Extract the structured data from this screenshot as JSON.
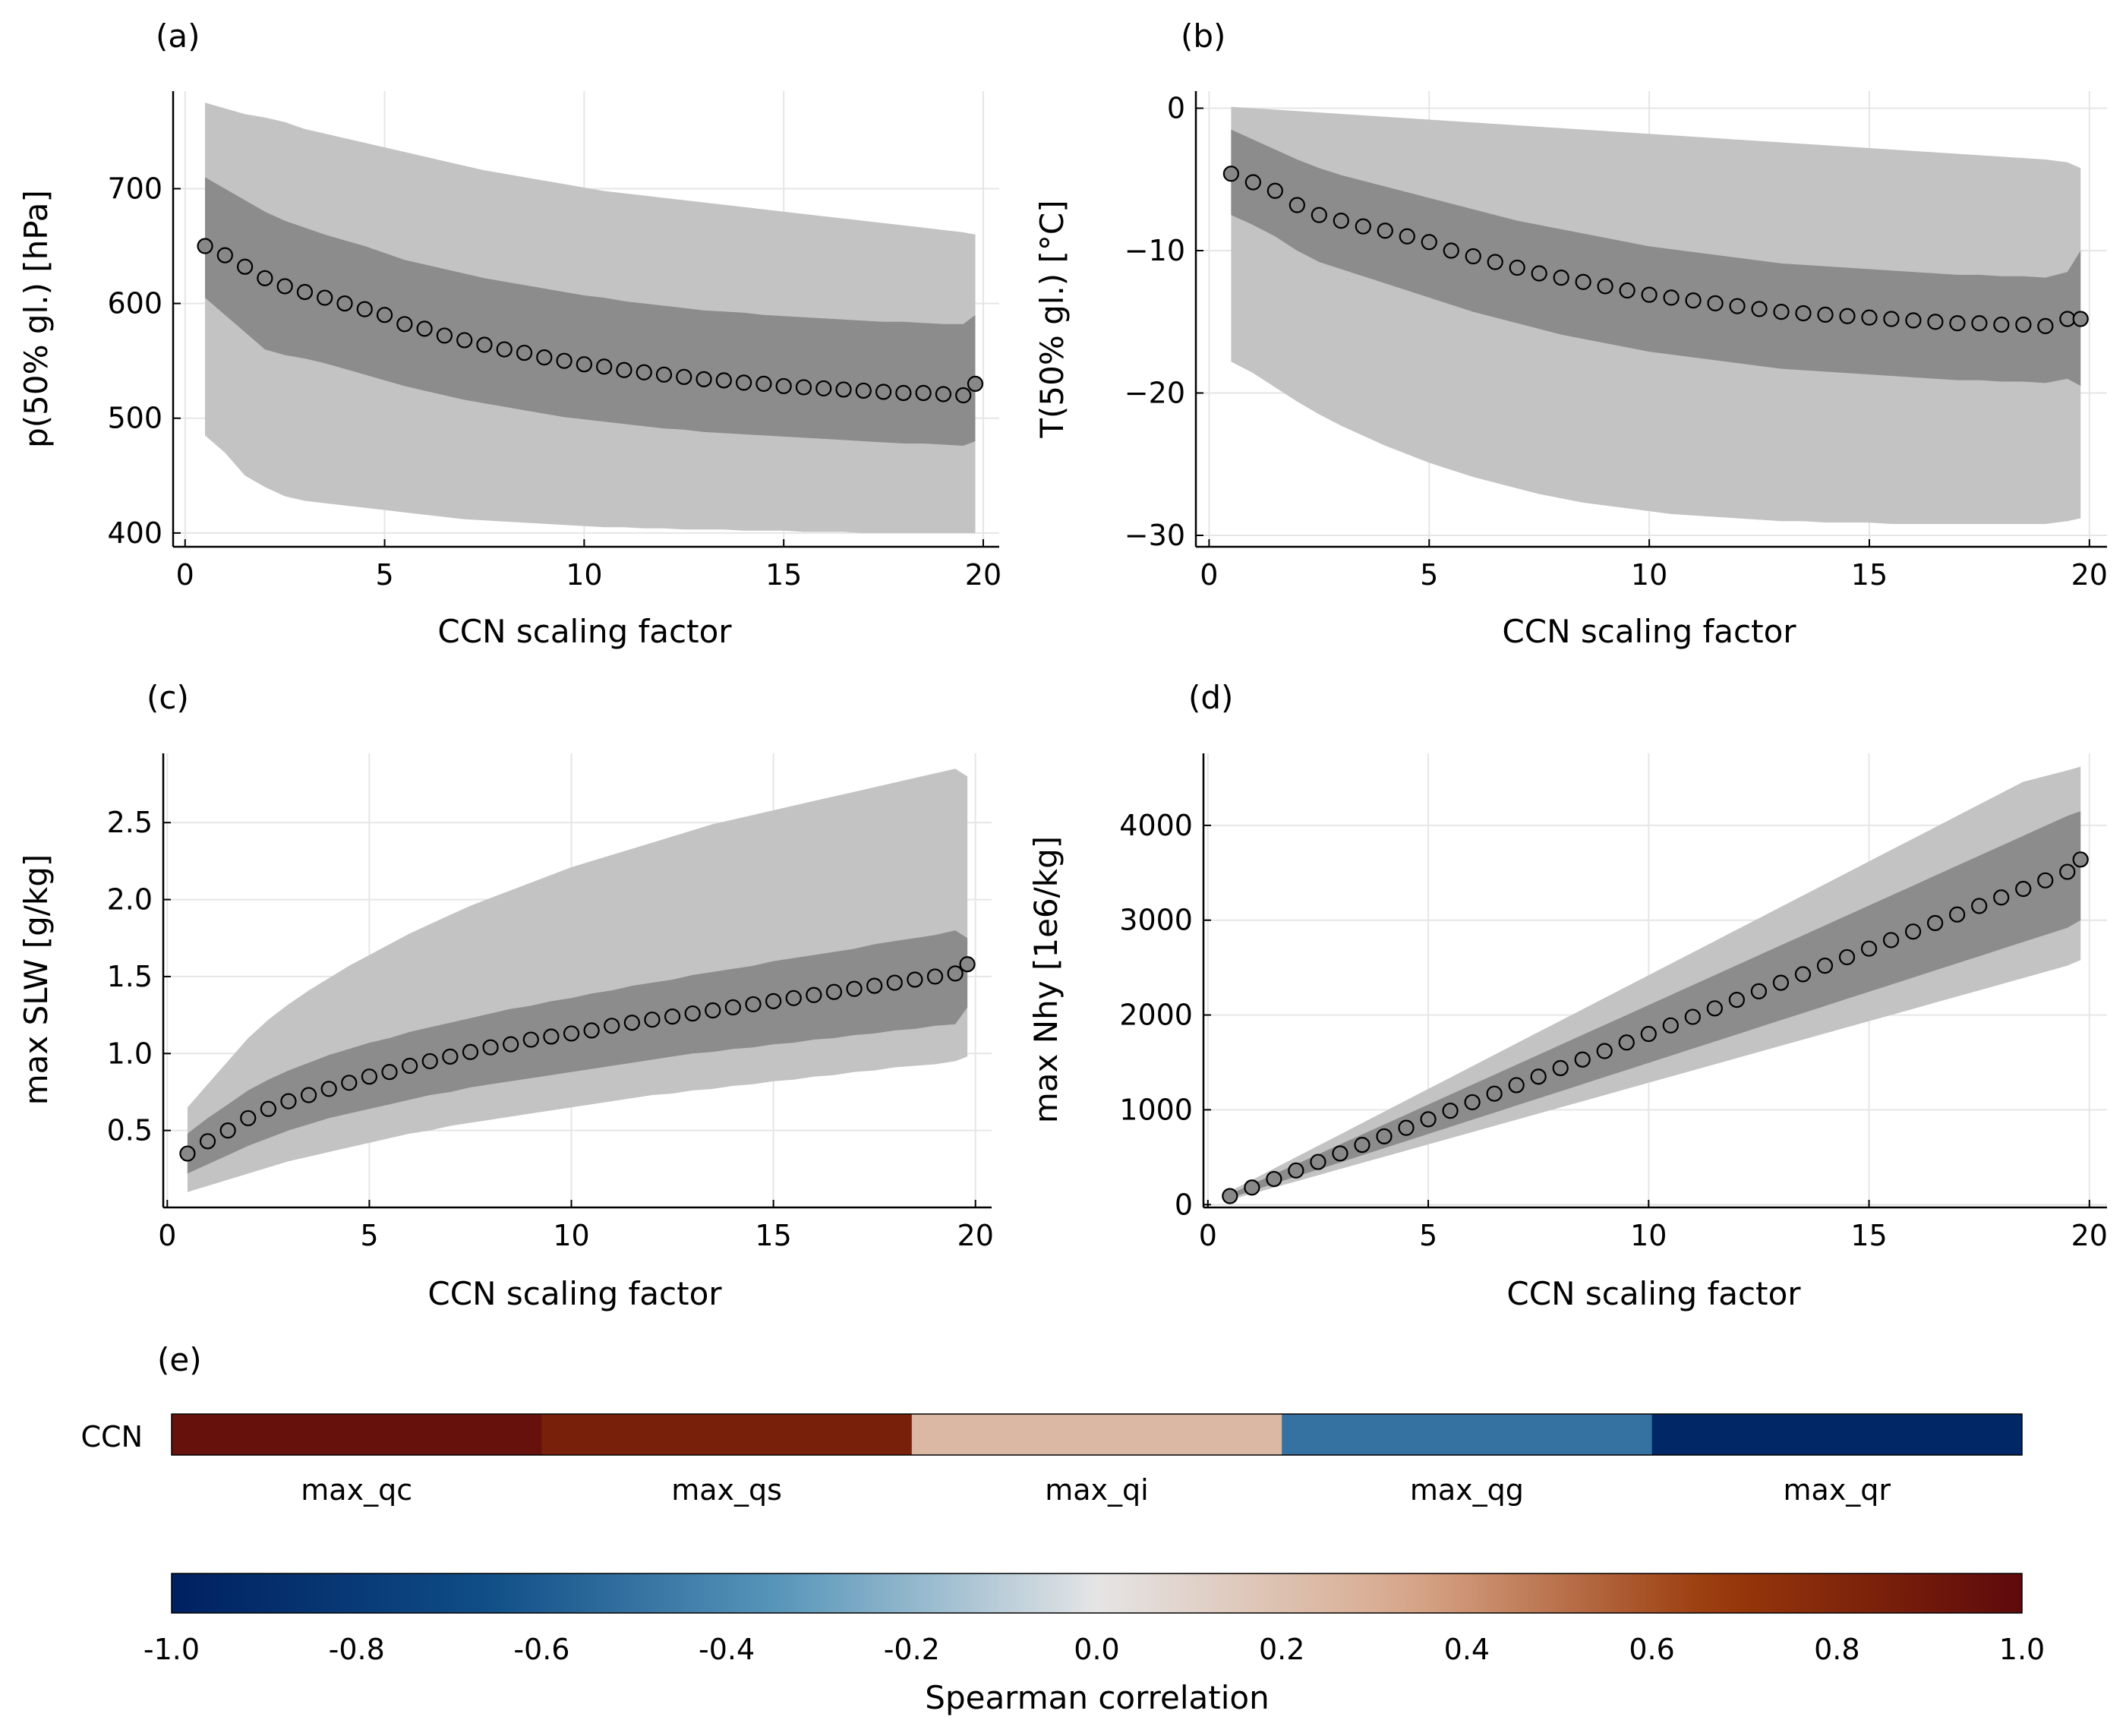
{
  "chart_data": [
    {
      "id": "a",
      "type": "scatter",
      "panel_label": "(a)",
      "xlabel": "CCN scaling factor",
      "ylabel": "p(50% gl.) [hPa]",
      "xlim": [
        -0.3,
        20.4
      ],
      "ylim": [
        388,
        785
      ],
      "xticks": [
        0,
        5,
        10,
        15,
        20
      ],
      "yticks": [
        400,
        500,
        600,
        700
      ],
      "ytick_labels": [
        "400",
        "500",
        "600",
        "700"
      ],
      "grid": true,
      "x": [
        0.5,
        1.0,
        1.5,
        2.0,
        2.5,
        3.0,
        3.5,
        4.0,
        4.5,
        5.0,
        5.5,
        6.0,
        6.5,
        7.0,
        7.5,
        8.0,
        8.5,
        9.0,
        9.5,
        10.0,
        10.5,
        11.0,
        11.5,
        12.0,
        12.5,
        13.0,
        13.5,
        14.0,
        14.5,
        15.0,
        15.5,
        16.0,
        16.5,
        17.0,
        17.5,
        18.0,
        18.5,
        19.0,
        19.5,
        19.8
      ],
      "y": [
        650,
        642,
        632,
        622,
        615,
        610,
        605,
        600,
        595,
        590,
        582,
        578,
        572,
        568,
        564,
        560,
        557,
        553,
        550,
        547,
        545,
        542,
        540,
        538,
        536,
        534,
        533,
        531,
        530,
        528,
        527,
        526,
        525,
        524,
        523,
        522,
        522,
        521,
        520,
        530
      ],
      "inner_lower": [
        605,
        590,
        575,
        560,
        555,
        552,
        548,
        543,
        538,
        533,
        528,
        524,
        520,
        516,
        513,
        510,
        507,
        504,
        501,
        499,
        497,
        495,
        493,
        491,
        490,
        488,
        487,
        486,
        485,
        484,
        483,
        482,
        481,
        480,
        479,
        478,
        478,
        477,
        476,
        480
      ],
      "inner_upper": [
        710,
        700,
        690,
        680,
        672,
        666,
        660,
        655,
        650,
        644,
        638,
        634,
        630,
        626,
        622,
        619,
        616,
        613,
        610,
        607,
        605,
        602,
        600,
        598,
        596,
        594,
        593,
        592,
        590,
        589,
        588,
        587,
        586,
        585,
        584,
        584,
        583,
        582,
        582,
        590
      ],
      "outer_lower": [
        485,
        470,
        450,
        440,
        432,
        428,
        426,
        424,
        422,
        420,
        418,
        416,
        414,
        412,
        411,
        410,
        409,
        408,
        407,
        406,
        405,
        405,
        404,
        404,
        403,
        403,
        403,
        402,
        402,
        402,
        401,
        401,
        401,
        400,
        400,
        400,
        400,
        400,
        400,
        400
      ],
      "outer_upper": [
        775,
        770,
        765,
        762,
        758,
        752,
        748,
        744,
        740,
        736,
        732,
        728,
        724,
        720,
        716,
        713,
        710,
        707,
        704,
        701,
        698,
        696,
        694,
        692,
        690,
        688,
        686,
        684,
        682,
        680,
        678,
        676,
        674,
        672,
        670,
        668,
        666,
        664,
        662,
        660
      ]
    },
    {
      "id": "b",
      "type": "scatter",
      "panel_label": "(b)",
      "xlabel": "CCN scaling factor",
      "ylabel": "T(50% gl.) [°C]",
      "xlim": [
        -0.3,
        20.4
      ],
      "ylim": [
        -30.8,
        1.2
      ],
      "xticks": [
        0,
        5,
        10,
        15,
        20
      ],
      "yticks": [
        -30,
        -20,
        -10,
        0
      ],
      "ytick_labels": [
        "−30",
        "−20",
        "−10",
        "0"
      ],
      "grid": true,
      "x": [
        0.5,
        1.0,
        1.5,
        2.0,
        2.5,
        3.0,
        3.5,
        4.0,
        4.5,
        5.0,
        5.5,
        6.0,
        6.5,
        7.0,
        7.5,
        8.0,
        8.5,
        9.0,
        9.5,
        10.0,
        10.5,
        11.0,
        11.5,
        12.0,
        12.5,
        13.0,
        13.5,
        14.0,
        14.5,
        15.0,
        15.5,
        16.0,
        16.5,
        17.0,
        17.5,
        18.0,
        18.5,
        19.0,
        19.5,
        19.8
      ],
      "y": [
        -4.6,
        -5.2,
        -5.8,
        -6.8,
        -7.5,
        -7.9,
        -8.3,
        -8.6,
        -9.0,
        -9.4,
        -10.0,
        -10.4,
        -10.8,
        -11.2,
        -11.6,
        -11.9,
        -12.2,
        -12.5,
        -12.8,
        -13.1,
        -13.3,
        -13.5,
        -13.7,
        -13.9,
        -14.1,
        -14.3,
        -14.4,
        -14.5,
        -14.6,
        -14.7,
        -14.8,
        -14.9,
        -15.0,
        -15.1,
        -15.1,
        -15.2,
        -15.2,
        -15.3,
        -14.8,
        -14.8
      ],
      "inner_lower": [
        -7.5,
        -8.2,
        -9.0,
        -10.0,
        -10.8,
        -11.3,
        -11.8,
        -12.3,
        -12.8,
        -13.3,
        -13.8,
        -14.3,
        -14.7,
        -15.1,
        -15.5,
        -15.9,
        -16.2,
        -16.5,
        -16.8,
        -17.1,
        -17.3,
        -17.5,
        -17.7,
        -17.9,
        -18.1,
        -18.3,
        -18.4,
        -18.5,
        -18.6,
        -18.7,
        -18.8,
        -18.9,
        -19.0,
        -19.1,
        -19.1,
        -19.2,
        -19.2,
        -19.3,
        -19.0,
        -19.5
      ],
      "inner_upper": [
        -1.5,
        -2.2,
        -2.9,
        -3.6,
        -4.2,
        -4.7,
        -5.1,
        -5.5,
        -5.9,
        -6.3,
        -6.7,
        -7.1,
        -7.5,
        -7.9,
        -8.2,
        -8.5,
        -8.8,
        -9.1,
        -9.4,
        -9.7,
        -9.9,
        -10.1,
        -10.3,
        -10.5,
        -10.7,
        -10.9,
        -11.0,
        -11.1,
        -11.2,
        -11.3,
        -11.4,
        -11.5,
        -11.6,
        -11.7,
        -11.7,
        -11.8,
        -11.8,
        -11.9,
        -11.5,
        -10.0
      ],
      "outer_lower": [
        -17.8,
        -18.6,
        -19.6,
        -20.6,
        -21.5,
        -22.3,
        -23.0,
        -23.7,
        -24.3,
        -24.9,
        -25.4,
        -25.9,
        -26.3,
        -26.7,
        -27.1,
        -27.4,
        -27.7,
        -27.9,
        -28.1,
        -28.3,
        -28.5,
        -28.6,
        -28.7,
        -28.8,
        -28.9,
        -29.0,
        -29.0,
        -29.1,
        -29.1,
        -29.1,
        -29.2,
        -29.2,
        -29.2,
        -29.2,
        -29.2,
        -29.2,
        -29.2,
        -29.2,
        -29.0,
        -28.8
      ],
      "outer_upper": [
        0.1,
        0.0,
        -0.1,
        -0.2,
        -0.3,
        -0.4,
        -0.5,
        -0.6,
        -0.7,
        -0.8,
        -0.9,
        -1.0,
        -1.1,
        -1.2,
        -1.3,
        -1.4,
        -1.5,
        -1.6,
        -1.7,
        -1.8,
        -1.9,
        -2.0,
        -2.1,
        -2.2,
        -2.3,
        -2.4,
        -2.5,
        -2.6,
        -2.7,
        -2.8,
        -2.9,
        -3.0,
        -3.1,
        -3.2,
        -3.3,
        -3.4,
        -3.5,
        -3.6,
        -3.8,
        -4.2
      ]
    },
    {
      "id": "c",
      "type": "scatter",
      "panel_label": "(c)",
      "xlabel": "CCN scaling factor",
      "ylabel": "max SLW [g/kg]",
      "xlim": [
        -0.1,
        20.4
      ],
      "ylim": [
        0.0,
        2.95
      ],
      "xticks": [
        0,
        5,
        10,
        15,
        20
      ],
      "yticks": [
        0.5,
        1.0,
        1.5,
        2.0,
        2.5
      ],
      "ytick_labels": [
        "0.5",
        "1.0",
        "1.5",
        "2.0",
        "2.5"
      ],
      "grid": true,
      "x": [
        0.5,
        1.0,
        1.5,
        2.0,
        2.5,
        3.0,
        3.5,
        4.0,
        4.5,
        5.0,
        5.5,
        6.0,
        6.5,
        7.0,
        7.5,
        8.0,
        8.5,
        9.0,
        9.5,
        10.0,
        10.5,
        11.0,
        11.5,
        12.0,
        12.5,
        13.0,
        13.5,
        14.0,
        14.5,
        15.0,
        15.5,
        16.0,
        16.5,
        17.0,
        17.5,
        18.0,
        18.5,
        19.0,
        19.5,
        19.8
      ],
      "y": [
        0.35,
        0.43,
        0.5,
        0.58,
        0.64,
        0.69,
        0.73,
        0.77,
        0.81,
        0.85,
        0.88,
        0.92,
        0.95,
        0.98,
        1.01,
        1.04,
        1.06,
        1.09,
        1.11,
        1.13,
        1.15,
        1.18,
        1.2,
        1.22,
        1.24,
        1.26,
        1.28,
        1.3,
        1.32,
        1.34,
        1.36,
        1.38,
        1.4,
        1.42,
        1.44,
        1.46,
        1.48,
        1.5,
        1.52,
        1.58
      ],
      "inner_lower": [
        0.22,
        0.28,
        0.34,
        0.4,
        0.45,
        0.5,
        0.54,
        0.58,
        0.61,
        0.64,
        0.67,
        0.7,
        0.73,
        0.75,
        0.78,
        0.8,
        0.82,
        0.84,
        0.86,
        0.88,
        0.9,
        0.92,
        0.94,
        0.96,
        0.98,
        1.0,
        1.01,
        1.03,
        1.04,
        1.06,
        1.07,
        1.09,
        1.1,
        1.12,
        1.13,
        1.15,
        1.16,
        1.18,
        1.19,
        1.3
      ],
      "inner_upper": [
        0.48,
        0.58,
        0.67,
        0.76,
        0.83,
        0.89,
        0.94,
        0.99,
        1.03,
        1.07,
        1.1,
        1.14,
        1.17,
        1.2,
        1.23,
        1.26,
        1.29,
        1.31,
        1.34,
        1.36,
        1.39,
        1.41,
        1.44,
        1.46,
        1.48,
        1.51,
        1.53,
        1.55,
        1.57,
        1.6,
        1.62,
        1.64,
        1.66,
        1.68,
        1.71,
        1.73,
        1.75,
        1.77,
        1.8,
        1.75
      ],
      "outer_lower": [
        0.1,
        0.14,
        0.18,
        0.22,
        0.26,
        0.3,
        0.33,
        0.36,
        0.39,
        0.42,
        0.45,
        0.48,
        0.5,
        0.53,
        0.55,
        0.57,
        0.59,
        0.61,
        0.63,
        0.65,
        0.67,
        0.69,
        0.71,
        0.73,
        0.74,
        0.76,
        0.77,
        0.79,
        0.8,
        0.82,
        0.83,
        0.85,
        0.86,
        0.88,
        0.89,
        0.91,
        0.92,
        0.93,
        0.95,
        0.98
      ],
      "outer_upper": [
        0.65,
        0.8,
        0.95,
        1.1,
        1.22,
        1.32,
        1.41,
        1.49,
        1.57,
        1.64,
        1.71,
        1.78,
        1.84,
        1.9,
        1.96,
        2.01,
        2.06,
        2.11,
        2.16,
        2.21,
        2.25,
        2.29,
        2.33,
        2.37,
        2.41,
        2.45,
        2.49,
        2.52,
        2.55,
        2.58,
        2.61,
        2.64,
        2.67,
        2.7,
        2.73,
        2.76,
        2.79,
        2.82,
        2.85,
        2.8
      ]
    },
    {
      "id": "d",
      "type": "scatter",
      "panel_label": "(d)",
      "xlabel": "CCN scaling factor",
      "ylabel": "max Nhy [1e6/kg]",
      "xlim": [
        -0.1,
        20.4
      ],
      "ylim": [
        -30,
        4760
      ],
      "xticks": [
        0,
        5,
        10,
        15,
        20
      ],
      "yticks": [
        0,
        1000,
        2000,
        3000,
        4000
      ],
      "ytick_labels": [
        "0",
        "1000",
        "2000",
        "3000",
        "4000"
      ],
      "grid": true,
      "x": [
        0.5,
        1.0,
        1.5,
        2.0,
        2.5,
        3.0,
        3.5,
        4.0,
        4.5,
        5.0,
        5.5,
        6.0,
        6.5,
        7.0,
        7.5,
        8.0,
        8.5,
        9.0,
        9.5,
        10.0,
        10.5,
        11.0,
        11.5,
        12.0,
        12.5,
        13.0,
        13.5,
        14.0,
        14.5,
        15.0,
        15.5,
        16.0,
        16.5,
        17.0,
        17.5,
        18.0,
        18.5,
        19.0,
        19.5,
        19.8
      ],
      "y": [
        90,
        180,
        270,
        360,
        450,
        540,
        630,
        720,
        810,
        900,
        990,
        1080,
        1170,
        1260,
        1350,
        1440,
        1530,
        1620,
        1710,
        1800,
        1890,
        1980,
        2070,
        2160,
        2250,
        2340,
        2430,
        2520,
        2610,
        2700,
        2790,
        2880,
        2970,
        3060,
        3150,
        3240,
        3330,
        3420,
        3510,
        3640
      ],
      "inner_lower": [
        70,
        145,
        220,
        295,
        370,
        445,
        520,
        595,
        670,
        745,
        820,
        895,
        970,
        1045,
        1120,
        1195,
        1270,
        1345,
        1420,
        1495,
        1570,
        1645,
        1720,
        1795,
        1870,
        1945,
        2020,
        2095,
        2170,
        2245,
        2320,
        2395,
        2470,
        2545,
        2620,
        2695,
        2770,
        2845,
        2920,
        3000
      ],
      "inner_upper": [
        110,
        215,
        320,
        425,
        530,
        635,
        740,
        845,
        950,
        1055,
        1160,
        1265,
        1370,
        1475,
        1580,
        1685,
        1790,
        1895,
        2000,
        2105,
        2210,
        2315,
        2420,
        2525,
        2630,
        2735,
        2840,
        2945,
        3050,
        3155,
        3260,
        3365,
        3470,
        3575,
        3680,
        3785,
        3890,
        3995,
        4100,
        4150
      ],
      "outer_lower": [
        50,
        115,
        180,
        245,
        310,
        375,
        440,
        505,
        570,
        635,
        700,
        765,
        830,
        895,
        960,
        1025,
        1090,
        1155,
        1220,
        1285,
        1350,
        1415,
        1480,
        1545,
        1610,
        1675,
        1740,
        1805,
        1870,
        1935,
        2000,
        2065,
        2130,
        2195,
        2260,
        2325,
        2390,
        2455,
        2520,
        2580
      ],
      "outer_upper": [
        140,
        260,
        380,
        500,
        620,
        740,
        860,
        980,
        1100,
        1220,
        1340,
        1460,
        1580,
        1700,
        1820,
        1940,
        2060,
        2180,
        2300,
        2420,
        2540,
        2660,
        2780,
        2900,
        3020,
        3140,
        3260,
        3380,
        3500,
        3620,
        3740,
        3860,
        3980,
        4100,
        4220,
        4340,
        4460,
        4520,
        4580,
        4620
      ]
    },
    {
      "id": "e",
      "type": "heatmap",
      "panel_label": "(e)",
      "row_label": "CCN",
      "columns": [
        "max_qc",
        "max_qs",
        "max_qi",
        "max_qg",
        "max_qr"
      ],
      "values": [
        0.95,
        0.85,
        0.25,
        -0.5,
        -0.95
      ],
      "colorbar": {
        "label": "Spearman correlation",
        "ticks": [
          -1.0,
          -0.8,
          -0.6,
          -0.4,
          -0.2,
          0.0,
          0.2,
          0.4,
          0.6,
          0.8,
          1.0
        ],
        "tick_labels": [
          "-1.0",
          "-0.8",
          "-0.6",
          "-0.4",
          "-0.2",
          "0.0",
          "0.2",
          "0.4",
          "0.6",
          "0.8",
          "1.0"
        ],
        "range": [
          -1.0,
          1.0
        ]
      },
      "colormap_stops": [
        "#002060",
        "#0e4c86",
        "#5b98bc",
        "#e5e5e5",
        "#d8a98d",
        "#9a3a0a",
        "#5e0a0c"
      ]
    }
  ],
  "colors": {
    "outer_band": "#c3c3c3",
    "inner_band": "#8c8c8c",
    "marker_fill": "#888888",
    "marker_edge": "#000000",
    "grid": "#e6e6e6",
    "axis": "#000000"
  }
}
